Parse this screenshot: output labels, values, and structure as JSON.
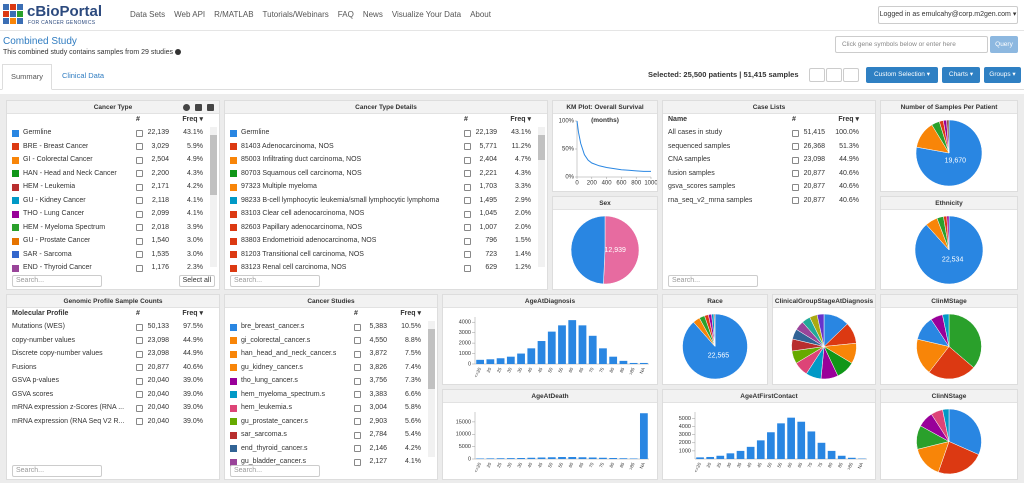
{
  "nav": {
    "logo_title": "cBioPortal",
    "logo_subtitle": "FOR CANCER GENOMICS",
    "links": [
      "Data Sets",
      "Web API",
      "R/MATLAB",
      "Tutorials/Webinars",
      "FAQ",
      "News",
      "Visualize Your Data",
      "About"
    ],
    "user": "Logged in as emulcahy@corp.m2gen.com"
  },
  "header": {
    "title": "Combined Study",
    "subtitle": "This combined study contains samples from 29 studies",
    "search_placeholder": "Click gene symbols below or enter here",
    "query": "Query"
  },
  "tabs": [
    "Summary",
    "Clinical Data"
  ],
  "selection": {
    "text": "Selected: 25,500 patients | 51,415 samples",
    "buttons": [
      "Custom Selection",
      "Charts",
      "Groups"
    ]
  },
  "panels": [
    {
      "type": "table",
      "title": "Cancer Type",
      "columns": [
        "#",
        "Freq"
      ],
      "search": "Search...",
      "select_all": "Select all",
      "rows": [
        {
          "label": "Germline",
          "count": "22,139",
          "freq": "43.1%",
          "color": "#2986e2"
        },
        {
          "label": "BRE - Breast Cancer",
          "count": "3,029",
          "freq": "5.9%",
          "color": "#dc3912"
        },
        {
          "label": "GI - Colorectal Cancer",
          "count": "2,504",
          "freq": "4.9%",
          "color": "#f88508"
        },
        {
          "label": "HAN - Head and Neck Cancer",
          "count": "2,200",
          "freq": "4.3%",
          "color": "#109618"
        },
        {
          "label": "HEM - Leukemia",
          "count": "2,171",
          "freq": "4.2%",
          "color": "#b82e2e"
        },
        {
          "label": "GU - Kidney Cancer",
          "count": "2,118",
          "freq": "4.1%",
          "color": "#0099c6"
        },
        {
          "label": "THO - Lung Cancer",
          "count": "2,099",
          "freq": "4.1%",
          "color": "#990099"
        },
        {
          "label": "HEM - Myeloma Spectrum",
          "count": "2,018",
          "freq": "3.9%",
          "color": "#2aa02b"
        },
        {
          "label": "GU - Prostate Cancer",
          "count": "1,540",
          "freq": "3.0%",
          "color": "#e67300"
        },
        {
          "label": "SAR - Sarcoma",
          "count": "1,535",
          "freq": "3.0%",
          "color": "#3366cc"
        },
        {
          "label": "END - Thyroid Cancer",
          "count": "1,176",
          "freq": "2.3%",
          "color": "#994499"
        }
      ]
    },
    {
      "type": "table",
      "title": "Cancer Type Details",
      "columns": [
        "#",
        "Freq"
      ],
      "search": "Search...",
      "rows": [
        {
          "label": "Germline",
          "count": "22,139",
          "freq": "43.1%",
          "color": "#2986e2"
        },
        {
          "label": "81403 Adenocarcinoma, NOS",
          "count": "5,771",
          "freq": "11.2%",
          "color": "#dc3912"
        },
        {
          "label": "85003 Infiltrating duct carcinoma, NOS",
          "count": "2,404",
          "freq": "4.7%",
          "color": "#f88508"
        },
        {
          "label": "80703 Squamous cell carcinoma, NOS",
          "count": "2,221",
          "freq": "4.3%",
          "color": "#109618"
        },
        {
          "label": "97323 Multiple myeloma",
          "count": "1,703",
          "freq": "3.3%",
          "color": "#f88508"
        },
        {
          "label": "98233 B-cell lymphocytic leukemia/small lymphocytic lymphoma",
          "count": "1,495",
          "freq": "2.9%",
          "color": "#0099c6"
        },
        {
          "label": "83103 Clear cell adenocarcinoma, NOS",
          "count": "1,045",
          "freq": "2.0%",
          "color": "#dc3912"
        },
        {
          "label": "82603 Papillary adenocarcinoma, NOS",
          "count": "1,007",
          "freq": "2.0%",
          "color": "#dc3912"
        },
        {
          "label": "83803 Endometrioid adenocarcinoma, NOS",
          "count": "796",
          "freq": "1.5%",
          "color": "#dc3912"
        },
        {
          "label": "81203 Transitional cell carcinoma, NOS",
          "count": "723",
          "freq": "1.4%",
          "color": "#dc3912"
        },
        {
          "label": "83123 Renal cell carcinoma, NOS",
          "count": "629",
          "freq": "1.2%",
          "color": "#dc3912"
        }
      ]
    },
    {
      "type": "km",
      "title": "KM Plot: Overall Survival (months)",
      "x": [
        0,
        20,
        50,
        100,
        150,
        200,
        300,
        400,
        500,
        600,
        700,
        800,
        900,
        1000
      ],
      "y": [
        100,
        80,
        60,
        40,
        30,
        25,
        20,
        17,
        15,
        13,
        12,
        11,
        10,
        10
      ],
      "xlim": [
        0,
        1000
      ],
      "ylim": [
        0,
        100
      ],
      "xticks": [
        0,
        200,
        400,
        600,
        800,
        1000
      ],
      "yticks": [
        {
          "value": 100,
          "label": "100%"
        },
        {
          "value": 50,
          "label": "50%"
        },
        {
          "value": 0,
          "label": "0%"
        }
      ],
      "color": "#2986e2"
    },
    {
      "type": "pie",
      "title": "Sex",
      "values": [
        12939,
        12561
      ],
      "colors": [
        "#e76ba0",
        "#2986e2"
      ],
      "value_labels": [
        "12,939",
        null
      ]
    },
    {
      "type": "table",
      "title": "Case Lists",
      "columns": [
        "Name",
        "#",
        "Freq"
      ],
      "search": "Search...",
      "rows": [
        {
          "label": "All cases in study",
          "count": "51,415",
          "freq": "100.0%"
        },
        {
          "label": "sequenced samples",
          "count": "26,368",
          "freq": "51.3%"
        },
        {
          "label": "CNA samples",
          "count": "23,098",
          "freq": "44.9%"
        },
        {
          "label": "fusion samples",
          "count": "20,877",
          "freq": "40.6%"
        },
        {
          "label": "gsva_scores samples",
          "count": "20,877",
          "freq": "40.6%"
        },
        {
          "label": "rna_seq_v2_mrna samples",
          "count": "20,877",
          "freq": "40.6%"
        }
      ]
    },
    {
      "type": "pie",
      "title": "Number of Samples Per Patient",
      "values": [
        19670,
        3400,
        1000,
        500,
        400,
        300
      ],
      "colors": [
        "#2986e2",
        "#f88508",
        "#2aa02b",
        "#dc3912",
        "#990099",
        "#8c564b"
      ],
      "value_labels": [
        "19,670",
        null,
        null,
        null,
        null,
        null
      ]
    },
    {
      "type": "pie",
      "title": "Ethnicity",
      "values": [
        22534,
        1500,
        800,
        400,
        266
      ],
      "colors": [
        "#2986e2",
        "#f88508",
        "#2aa02b",
        "#dc3912",
        "#990099"
      ],
      "value_labels": [
        "22,534",
        null,
        null,
        null,
        null
      ]
    },
    {
      "type": "table",
      "title": "Genomic Profile Sample Counts",
      "columns": [
        "Molecular Profile",
        "#",
        "Freq"
      ],
      "search": "Search...",
      "rows": [
        {
          "label": "Mutations (WES)",
          "count": "50,133",
          "freq": "97.5%"
        },
        {
          "label": "copy-number values",
          "count": "23,098",
          "freq": "44.9%"
        },
        {
          "label": "Discrete copy-number values",
          "count": "23,098",
          "freq": "44.9%"
        },
        {
          "label": "Fusions",
          "count": "20,877",
          "freq": "40.6%"
        },
        {
          "label": "GSVA p-values",
          "count": "20,040",
          "freq": "39.0%"
        },
        {
          "label": "GSVA scores",
          "count": "20,040",
          "freq": "39.0%"
        },
        {
          "label": "mRNA expression z-Scores (RNA ...",
          "count": "20,040",
          "freq": "39.0%"
        },
        {
          "label": "mRNA expression (RNA Seq V2 R...",
          "count": "20,040",
          "freq": "39.0%"
        }
      ]
    },
    {
      "type": "table",
      "title": "Cancer Studies",
      "columns": [
        "#",
        "Freq"
      ],
      "search": "Search...",
      "rows": [
        {
          "label": "bre_breast_cancer.s",
          "count": "5,383",
          "freq": "10.5%",
          "color": "#2986e2"
        },
        {
          "label": "gi_colorectal_cancer.s",
          "count": "4,550",
          "freq": "8.8%",
          "color": "#f88508"
        },
        {
          "label": "han_head_and_neck_cancer.s",
          "count": "3,872",
          "freq": "7.5%",
          "color": "#f88508"
        },
        {
          "label": "gu_kidney_cancer.s",
          "count": "3,826",
          "freq": "7.4%",
          "color": "#f88508"
        },
        {
          "label": "tho_lung_cancer.s",
          "count": "3,756",
          "freq": "7.3%",
          "color": "#990099"
        },
        {
          "label": "hem_myeloma_spectrum.s",
          "count": "3,383",
          "freq": "6.6%",
          "color": "#0099c6"
        },
        {
          "label": "hem_leukemia.s",
          "count": "3,004",
          "freq": "5.8%",
          "color": "#dd4477"
        },
        {
          "label": "gu_prostate_cancer.s",
          "count": "2,903",
          "freq": "5.6%",
          "color": "#66aa00"
        },
        {
          "label": "sar_sarcoma.s",
          "count": "2,784",
          "freq": "5.4%",
          "color": "#b82e2e"
        },
        {
          "label": "end_thyroid_cancer.s",
          "count": "2,146",
          "freq": "4.2%",
          "color": "#316395"
        },
        {
          "label": "gu_bladder_cancer.s",
          "count": "2,127",
          "freq": "4.1%",
          "color": "#994499"
        }
      ]
    },
    {
      "type": "bar",
      "title": "AgeAtDiagnosis",
      "categories": [
        "<=20",
        "20",
        "25",
        "30",
        "35",
        "40",
        "45",
        "50",
        "55",
        "60",
        "65",
        "70",
        "75",
        "80",
        "85",
        ">85",
        "NA"
      ],
      "values": [
        400,
        450,
        550,
        700,
        1000,
        1500,
        2200,
        3100,
        3700,
        4200,
        3700,
        2700,
        1500,
        700,
        300,
        100,
        100
      ],
      "ylim": [
        0,
        4500
      ],
      "yticks": [
        0,
        1000,
        2000,
        3000,
        4000
      ],
      "color": "#2986e2"
    },
    {
      "type": "bar",
      "title": "AgeAtDeath",
      "categories": [
        "<=20",
        "20",
        "25",
        "30",
        "35",
        "40",
        "45",
        "50",
        "55",
        "60",
        "65",
        "70",
        "75",
        "80",
        "85",
        ">85",
        "NA"
      ],
      "values": [
        200,
        250,
        300,
        350,
        400,
        500,
        600,
        700,
        800,
        800,
        700,
        600,
        500,
        400,
        300,
        200,
        18500
      ],
      "ylim": [
        0,
        19000
      ],
      "yticks": [
        0,
        5000,
        10000,
        15000
      ],
      "color": "#2986e2"
    },
    {
      "type": "pie",
      "title": "Race",
      "values": [
        22565,
        900,
        700,
        500,
        400,
        300,
        135
      ],
      "colors": [
        "#2986e2",
        "#f88508",
        "#2aa02b",
        "#dc3912",
        "#990099",
        "#0099c6",
        "#8c564b"
      ],
      "value_labels": [
        "22,565",
        null,
        null,
        null,
        null,
        null,
        null
      ]
    },
    {
      "type": "pie",
      "title": "ClinicalGroupStageAtDiagnosis",
      "values": [
        3000,
        2500,
        2400,
        2200,
        2000,
        1800,
        1700,
        1500,
        1400,
        1200,
        1100,
        1000,
        900,
        800
      ],
      "colors": [
        "#2986e2",
        "#dc3912",
        "#f88508",
        "#109618",
        "#990099",
        "#0099c6",
        "#dd4477",
        "#66aa00",
        "#b82e2e",
        "#316395",
        "#994499",
        "#22aa99",
        "#aaaa11",
        "#6633cc"
      ]
    },
    {
      "type": "pie",
      "title": "ClinMStage",
      "values": [
        9000,
        6000,
        4500,
        3000,
        1500,
        800
      ],
      "colors": [
        "#2aa02b",
        "#dc3912",
        "#f88508",
        "#2986e2",
        "#990099",
        "#0099c6"
      ]
    },
    {
      "type": "bar",
      "title": "AgeAtFirstContact",
      "categories": [
        "<=20",
        "20",
        "25",
        "30",
        "35",
        "40",
        "45",
        "50",
        "55",
        "60",
        "65",
        "70",
        "75",
        "80",
        "85",
        ">85",
        "NA"
      ],
      "values": [
        200,
        250,
        400,
        700,
        1000,
        1500,
        2300,
        3300,
        4400,
        5100,
        4600,
        3400,
        2000,
        1000,
        400,
        150,
        50
      ],
      "ylim": [
        0,
        5800
      ],
      "yticks": [
        1000,
        2000,
        3000,
        4000,
        5000
      ],
      "color": "#2986e2"
    },
    {
      "type": "pie",
      "title": "ClinNStage",
      "values": [
        8000,
        6000,
        4000,
        3000,
        2000,
        1500,
        800
      ],
      "colors": [
        "#2986e2",
        "#dc3912",
        "#f88508",
        "#2aa02b",
        "#990099",
        "#dd4477",
        "#0099c6"
      ]
    }
  ]
}
